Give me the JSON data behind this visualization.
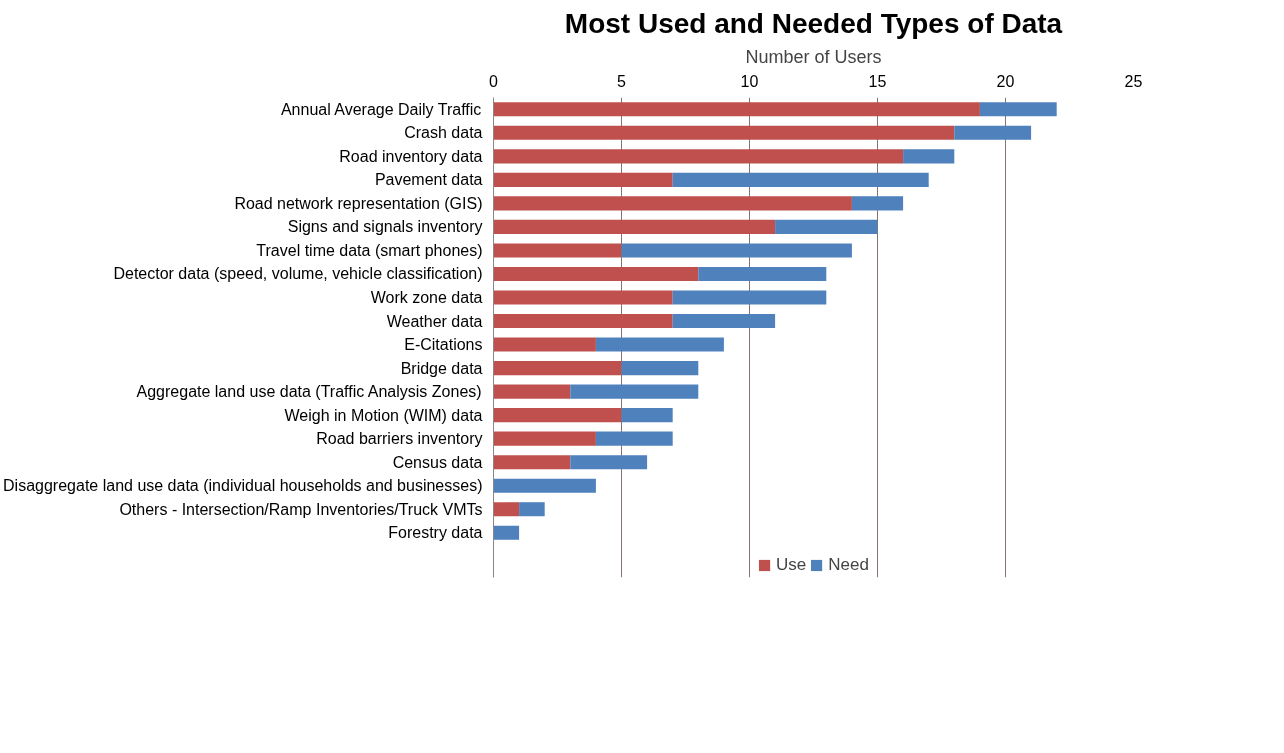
{
  "chart_data": {
    "type": "bar",
    "orientation": "horizontal",
    "stacked": true,
    "title": "Most Used and Needed Types of Data",
    "xlabel": "Number of Users",
    "categories": [
      "Annual Average Daily Traffic",
      "Crash data",
      "Road inventory data",
      "Pavement data",
      "Road network representation (GIS)",
      "Signs and signals inventory",
      "Travel time data (smart phones)",
      "Detector data (speed, volume, vehicle classification)",
      "Work zone data",
      "Weather data",
      "E-Citations",
      "Bridge data",
      "Aggregate land use data (Traffic Analysis Zones)",
      "Weigh in Motion (WIM) data",
      "Road barriers inventory",
      "Census data",
      "Disaggregate land use data (individual households and businesses)",
      "Others - Intersection/Ramp Inventories/Truck VMTs",
      "Forestry data"
    ],
    "series": [
      {
        "name": "Use",
        "color": "#c0504d",
        "values": [
          19,
          18,
          16,
          7,
          14,
          11,
          5,
          8,
          7,
          7,
          4,
          5,
          3,
          5,
          4,
          3,
          0,
          1,
          0
        ]
      },
      {
        "name": "Need",
        "color": "#4f81bd",
        "values": [
          3,
          3,
          2,
          10,
          2,
          4,
          9,
          5,
          6,
          4,
          5,
          3,
          5,
          2,
          3,
          3,
          4,
          1,
          1
        ]
      }
    ],
    "xlim": [
      0,
      25
    ],
    "xticks": [
      0,
      5,
      10,
      15,
      20,
      25
    ],
    "grid": "x",
    "legend": "bottom"
  }
}
